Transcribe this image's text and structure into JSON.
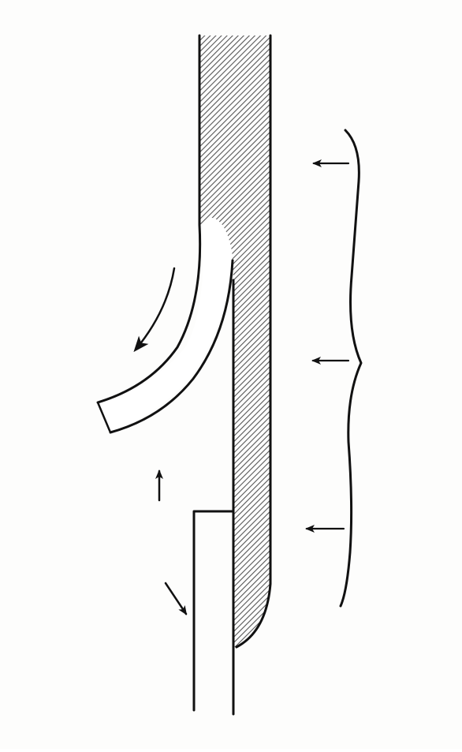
{
  "figure": {
    "kind": "line illustration",
    "background_color": "#fdfdfc",
    "ink_color": "#111111",
    "hatch_color": "#555555",
    "elements": [
      "hatched-bar",
      "curved-strip",
      "lower-rectangle",
      "right-brace",
      "force-arrow-top",
      "force-arrow-middle",
      "force-arrow-bottom",
      "curve-motion-arrow",
      "upward-arrow",
      "diagonal-arrow"
    ]
  }
}
